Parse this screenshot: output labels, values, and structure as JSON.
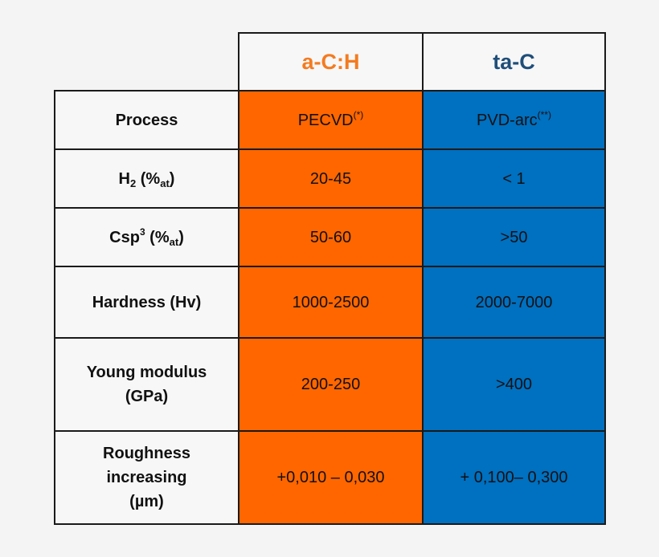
{
  "colors": {
    "a_ch": "#ff6600",
    "ta_c": "#0070c0",
    "a_ch_header_text": "#f47b20",
    "ta_c_header_text": "#1f4e79"
  },
  "headers": [
    "a-C:H",
    "ta-C"
  ],
  "rows": [
    {
      "label": {
        "main": "Process"
      },
      "a_ch": {
        "main": "PECVD",
        "sup": "(*)"
      },
      "ta_c": {
        "main": "PVD-arc",
        "sup": "(**)"
      }
    },
    {
      "label": {
        "main": "H",
        "sub": "2",
        "mid": " (%",
        "sub2": "at",
        "end": ")"
      },
      "a_ch": {
        "main": "20-45"
      },
      "ta_c": {
        "main": "< 1"
      }
    },
    {
      "label": {
        "main": "Csp",
        "sup": "3",
        "mid": " (%",
        "sub2": "at",
        "end": ")"
      },
      "a_ch": {
        "main": "50-60"
      },
      "ta_c": {
        "main": ">50"
      }
    },
    {
      "label": {
        "main": "Hardness (Hv)"
      },
      "a_ch": {
        "main": "1000-2500"
      },
      "ta_c": {
        "main": "2000-7000"
      }
    },
    {
      "label": {
        "line1": "Young modulus",
        "line2": "(GPa)"
      },
      "a_ch": {
        "main": "200-250"
      },
      "ta_c": {
        "main": ">400"
      }
    },
    {
      "label": {
        "line1": "Roughness",
        "line2": "increasing",
        "line3": "(µm)"
      },
      "a_ch": {
        "main": "+0,010 – 0,030"
      },
      "ta_c": {
        "main": "+ 0,100– 0,300"
      }
    }
  ]
}
